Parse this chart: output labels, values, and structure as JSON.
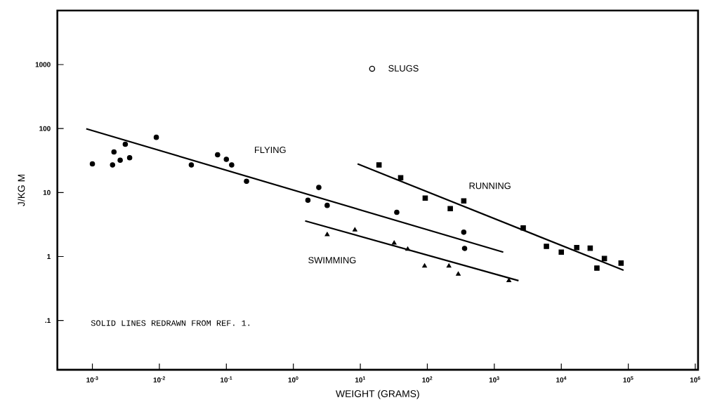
{
  "chart_data": {
    "type": "scatter",
    "xlabel": "WEIGHT (GRAMS)",
    "ylabel": "J/KG M",
    "log": "xy",
    "xlim": [
      0.0003,
      1100000
    ],
    "ylim": [
      0.017,
      7000
    ],
    "xticks": [
      {
        "value": 0.001,
        "label": "10$^{-3}$"
      },
      {
        "value": 0.01,
        "label": "10$^{-2}$"
      },
      {
        "value": 0.1,
        "label": "10$^{-1}$"
      },
      {
        "value": 1,
        "label": "10$^{0}$"
      },
      {
        "value": 10,
        "label": "10$^{1}$"
      },
      {
        "value": 100,
        "label": "10$^{2}$"
      },
      {
        "value": 1000,
        "label": "10$^{3}$"
      },
      {
        "value": 10000,
        "label": "10$^{4}$"
      },
      {
        "value": 100000,
        "label": "10$^{5}$"
      },
      {
        "value": 1000000,
        "label": "10$^{6}$"
      }
    ],
    "yticks": [
      {
        "value": 0.1,
        "label": ".1"
      },
      1,
      10,
      100,
      1000
    ],
    "series": [
      {
        "name": "FLYING",
        "marker": "circle",
        "color": "#000000",
        "x": [
          0.001,
          0.002,
          0.0021,
          0.0026,
          0.0031,
          0.0036,
          0.009,
          0.03,
          0.074,
          0.1,
          0.12,
          0.2,
          1.65,
          2.4,
          3.2,
          35,
          350,
          360
        ],
        "values": [
          28,
          27,
          43,
          32,
          57,
          35,
          73,
          27,
          39,
          33,
          27,
          15,
          7.6,
          12,
          6.3,
          4.9,
          2.4,
          1.34
        ]
      },
      {
        "name": "RUNNING",
        "marker": "square",
        "color": "#000000",
        "x": [
          19,
          40,
          93,
          220,
          350,
          2700,
          6000,
          10000,
          17000,
          27000,
          34000,
          44000,
          78000
        ],
        "values": [
          27,
          17,
          8.2,
          5.6,
          7.4,
          2.8,
          1.44,
          1.17,
          1.38,
          1.35,
          0.66,
          0.93,
          0.79
        ]
      },
      {
        "name": "SWIMMING",
        "marker": "triangle",
        "color": "#000000",
        "x": [
          3.2,
          8.3,
          32,
          51,
          91,
          210,
          290,
          1650
        ],
        "values": [
          2.2,
          2.6,
          1.62,
          1.3,
          0.71,
          0.71,
          0.53,
          0.42
        ]
      },
      {
        "name": "SLUGS",
        "marker": "circle",
        "color": "#000000",
        "x": [
          15
        ],
        "values": [
          860
        ]
      },
      {
        "type": "line",
        "marker": "none",
        "color": "#000000",
        "x": [
          0.00081,
          1360
        ],
        "values": [
          99,
          1.17
        ]
      },
      {
        "type": "line",
        "marker": "none",
        "color": "#000000",
        "x": [
          9.1,
          85000
        ],
        "values": [
          28,
          0.61
        ]
      },
      {
        "type": "line",
        "marker": "none",
        "color": "#000000",
        "x": [
          1.5,
          2300
        ],
        "values": [
          3.6,
          0.42
        ]
      }
    ],
    "annotations": [
      "SOLID LINES REDRAWN FROM REF. 1."
    ]
  }
}
